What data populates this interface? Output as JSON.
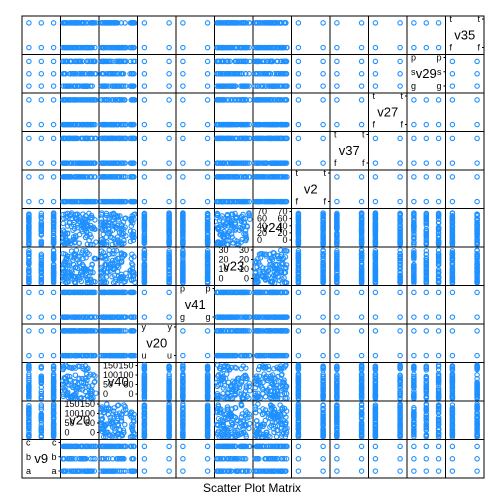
{
  "chart_data": {
    "type": "scatter",
    "title": "Scatter Plot Matrix",
    "point_color": "#1E90FF",
    "grid": false,
    "variables": [
      {
        "name": "v9",
        "kind": "factor",
        "levels": [
          "a",
          "b",
          "c"
        ]
      },
      {
        "name": "v20",
        "kind": "numeric",
        "ticks": [
          0,
          50,
          100,
          150
        ],
        "range": [
          0,
          160
        ]
      },
      {
        "name": "v40",
        "kind": "numeric",
        "ticks": [
          0,
          50,
          100,
          150
        ],
        "range": [
          0,
          160
        ]
      },
      {
        "name": "v20",
        "kind": "factor",
        "levels": [
          "u",
          "y"
        ]
      },
      {
        "name": "v41",
        "kind": "factor",
        "levels": [
          "g",
          "p"
        ]
      },
      {
        "name": "v23",
        "kind": "numeric",
        "ticks": [
          0,
          10,
          20,
          30
        ],
        "range": [
          0,
          34
        ]
      },
      {
        "name": "v24",
        "kind": "numeric",
        "ticks": [
          0,
          20,
          40,
          60,
          70
        ],
        "range": [
          0,
          75
        ]
      },
      {
        "name": "v2",
        "kind": "factor",
        "levels": [
          "f",
          "t"
        ]
      },
      {
        "name": "v37",
        "kind": "factor",
        "levels": [
          "f",
          "t"
        ]
      },
      {
        "name": "v27",
        "kind": "factor",
        "levels": [
          "f",
          "t"
        ]
      },
      {
        "name": "v29",
        "kind": "factor",
        "levels": [
          "g",
          "s",
          "p"
        ]
      },
      {
        "name": "v35",
        "kind": "factor",
        "levels": [
          "f",
          "t"
        ]
      }
    ]
  }
}
